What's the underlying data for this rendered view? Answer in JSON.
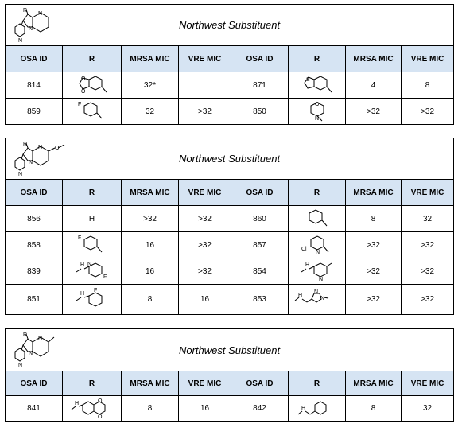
{
  "blocks": [
    {
      "title": "Northwest Substituent",
      "scaffold_label": "R",
      "headers": [
        "OSA ID",
        "R",
        "MRSA MIC",
        "VRE MIC",
        "OSA ID",
        "R",
        "MRSA MIC",
        "VRE MIC"
      ],
      "rows": [
        {
          "left": {
            "id": "814",
            "r_icon": "benzodioxole-structure",
            "mrsa": "32*",
            "vre": ""
          },
          "right": {
            "id": "871",
            "r_icon": "benzothiophene-structure",
            "mrsa": "4",
            "vre": "8"
          }
        },
        {
          "left": {
            "id": "859",
            "r_icon": "fluorophenyl-structure",
            "mrsa": "32",
            "vre": ">32"
          },
          "right": {
            "id": "850",
            "r_icon": "morpholine-structure",
            "mrsa": ">32",
            "vre": ">32"
          }
        }
      ]
    },
    {
      "title": "Northwest Substituent",
      "scaffold_label": "R",
      "headers": [
        "OSA ID",
        "R",
        "MRSA MIC",
        "VRE MIC",
        "OSA ID",
        "R",
        "MRSA MIC",
        "VRE MIC"
      ],
      "rows": [
        {
          "left": {
            "id": "856",
            "r_text": "H",
            "mrsa": ">32",
            "vre": ">32"
          },
          "right": {
            "id": "860",
            "r_icon": "phenyl-structure",
            "mrsa": "8",
            "vre": "32"
          }
        },
        {
          "left": {
            "id": "858",
            "r_icon": "fluorophenyl-structure",
            "mrsa": "16",
            "vre": ">32"
          },
          "right": {
            "id": "857",
            "r_icon": "chloropyridine-structure",
            "mrsa": ">32",
            "vre": ">32"
          }
        },
        {
          "left": {
            "id": "839",
            "r_icon": "fluoropyridylamine-structure",
            "mrsa": "16",
            "vre": ">32"
          },
          "right": {
            "id": "854",
            "r_icon": "methylpyridylamine-structure",
            "mrsa": ">32",
            "vre": ">32"
          }
        },
        {
          "left": {
            "id": "851",
            "r_icon": "fluoroanilino-structure",
            "mrsa": "8",
            "vre": "16"
          },
          "right": {
            "id": "853",
            "r_icon": "methylimidazolylmethylamine-structure",
            "mrsa": ">32",
            "vre": ">32"
          }
        }
      ]
    },
    {
      "title": "Northwest Substituent",
      "scaffold_label": "R",
      "headers": [
        "OSA ID",
        "R",
        "MRSA MIC",
        "VRE MIC",
        "OSA ID",
        "R",
        "MRSA MIC",
        "VRE MIC"
      ],
      "rows": [
        {
          "left": {
            "id": "841",
            "r_icon": "benzodioxinylamine-structure",
            "mrsa": "8",
            "vre": "16"
          },
          "right": {
            "id": "842",
            "r_icon": "benzylamine-structure",
            "mrsa": "8",
            "vre": "32"
          }
        }
      ]
    }
  ],
  "structure_labels": {
    "nh": "H",
    "n": "N",
    "f": "F",
    "cl": "Cl",
    "s": "S",
    "o": "O"
  }
}
